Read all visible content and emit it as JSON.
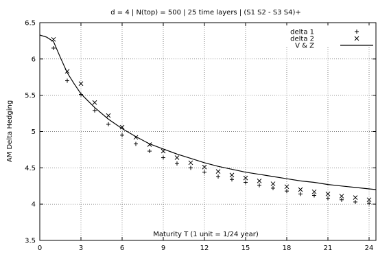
{
  "chart_data": {
    "type": "scatter",
    "title": "d = 4 | N(top) = 500 | 25 time layers | (S1 S2 - S3 S4)+",
    "xlabel": "Maturity T (1 unit = 1/24 year)",
    "ylabel": "AM Delta Hedging",
    "xlim": [
      0,
      24.5
    ],
    "ylim": [
      3.5,
      6.5
    ],
    "x_ticks": [
      0,
      3,
      6,
      9,
      12,
      15,
      18,
      21,
      24
    ],
    "y_ticks": [
      3.5,
      4,
      4.5,
      5,
      5.5,
      6,
      6.5
    ],
    "y_tick_labels": [
      "3.5",
      "4",
      "4.5",
      "5",
      "5.5",
      "6",
      "6.5"
    ],
    "grid": "dotted",
    "legend_position": "top-right",
    "series": [
      {
        "name": "delta 1",
        "marker": "plus",
        "x": [
          1,
          2,
          3,
          4,
          5,
          6,
          7,
          8,
          9,
          10,
          11,
          12,
          13,
          14,
          15,
          16,
          17,
          18,
          19,
          20,
          21,
          22,
          23,
          24
        ],
        "y": [
          6.15,
          5.7,
          5.51,
          5.29,
          5.1,
          4.95,
          4.83,
          4.73,
          4.64,
          4.56,
          4.5,
          4.44,
          4.38,
          4.34,
          4.3,
          4.26,
          4.22,
          4.18,
          4.14,
          4.12,
          4.08,
          4.06,
          4.03,
          4.01
        ]
      },
      {
        "name": "delta 2",
        "marker": "cross",
        "x": [
          1,
          2,
          3,
          4,
          5,
          6,
          7,
          8,
          9,
          10,
          11,
          12,
          13,
          14,
          15,
          16,
          17,
          18,
          19,
          20,
          21,
          22,
          23,
          24
        ],
        "y": [
          6.27,
          5.83,
          5.66,
          5.4,
          5.22,
          5.06,
          4.92,
          4.82,
          4.73,
          4.64,
          4.57,
          4.51,
          4.45,
          4.4,
          4.36,
          4.32,
          4.28,
          4.24,
          4.2,
          4.17,
          4.14,
          4.11,
          4.09,
          4.06
        ]
      },
      {
        "name": "V & Z",
        "marker": "line",
        "x": [
          0,
          0.5,
          1,
          1.5,
          2,
          2.5,
          3,
          4,
          5,
          6,
          7,
          8,
          9,
          10,
          11,
          12,
          13,
          14,
          15,
          16,
          17,
          18,
          19,
          20,
          21,
          22,
          23,
          24,
          24.5
        ],
        "y": [
          6.33,
          6.3,
          6.24,
          6.02,
          5.81,
          5.66,
          5.52,
          5.33,
          5.17,
          5.04,
          4.93,
          4.83,
          4.76,
          4.69,
          4.63,
          4.57,
          4.52,
          4.48,
          4.44,
          4.41,
          4.38,
          4.35,
          4.32,
          4.3,
          4.27,
          4.25,
          4.23,
          4.21,
          4.2
        ]
      }
    ]
  }
}
